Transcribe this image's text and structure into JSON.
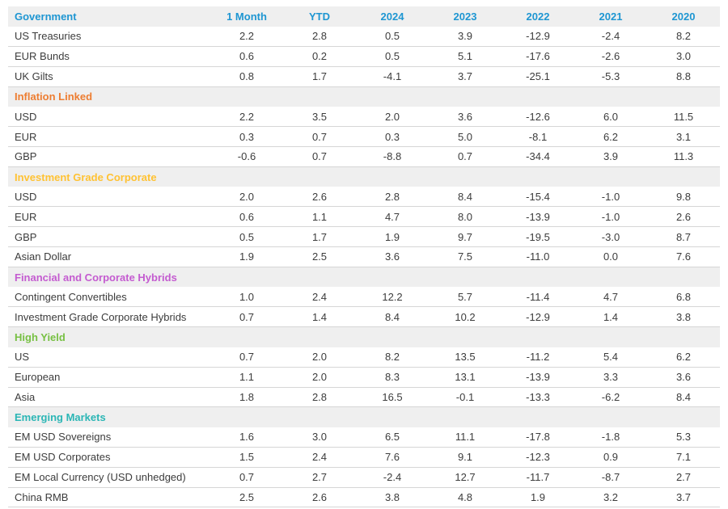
{
  "table": {
    "header_color": "#1e96d2",
    "band_background": "#efefef",
    "row_border_color": "#d6d6d6",
    "body_text_color": "#3c3c3c",
    "columns": [
      "1 Month",
      "YTD",
      "2024",
      "2023",
      "2022",
      "2021",
      "2020"
    ],
    "sections": [
      {
        "name": "Government",
        "color": "#1e96d2",
        "rows": [
          {
            "label": "US Treasuries",
            "values": [
              "2.2",
              "2.8",
              "0.5",
              "3.9",
              "-12.9",
              "-2.4",
              "8.2"
            ]
          },
          {
            "label": "EUR Bunds",
            "values": [
              "0.6",
              "0.2",
              "0.5",
              "5.1",
              "-17.6",
              "-2.6",
              "3.0"
            ]
          },
          {
            "label": "UK Gilts",
            "values": [
              "0.8",
              "1.7",
              "-4.1",
              "3.7",
              "-25.1",
              "-5.3",
              "8.8"
            ]
          }
        ]
      },
      {
        "name": "Inflation Linked",
        "color": "#ed7d31",
        "rows": [
          {
            "label": "USD",
            "values": [
              "2.2",
              "3.5",
              "2.0",
              "3.6",
              "-12.6",
              "6.0",
              "11.5"
            ]
          },
          {
            "label": "EUR",
            "values": [
              "0.3",
              "0.7",
              "0.3",
              "5.0",
              "-8.1",
              "6.2",
              "3.1"
            ]
          },
          {
            "label": "GBP",
            "values": [
              "-0.6",
              "0.7",
              "-8.8",
              "0.7",
              "-34.4",
              "3.9",
              "11.3"
            ]
          }
        ]
      },
      {
        "name": "Investment Grade Corporate",
        "color": "#ffc233",
        "rows": [
          {
            "label": "USD",
            "values": [
              "2.0",
              "2.6",
              "2.8",
              "8.4",
              "-15.4",
              "-1.0",
              "9.8"
            ]
          },
          {
            "label": "EUR",
            "values": [
              "0.6",
              "1.1",
              "4.7",
              "8.0",
              "-13.9",
              "-1.0",
              "2.6"
            ]
          },
          {
            "label": "GBP",
            "values": [
              "0.5",
              "1.7",
              "1.9",
              "9.7",
              "-19.5",
              "-3.0",
              "8.7"
            ]
          },
          {
            "label": "Asian Dollar",
            "values": [
              "1.9",
              "2.5",
              "3.6",
              "7.5",
              "-11.0",
              "0.0",
              "7.6"
            ]
          }
        ]
      },
      {
        "name": "Financial and Corporate Hybrids",
        "color": "#c45bd0",
        "rows": [
          {
            "label": "Contingent Convertibles",
            "values": [
              "1.0",
              "2.4",
              "12.2",
              "5.7",
              "-11.4",
              "4.7",
              "6.8"
            ]
          },
          {
            "label": "Investment Grade Corporate Hybrids",
            "values": [
              "0.7",
              "1.4",
              "8.4",
              "10.2",
              "-12.9",
              "1.4",
              "3.8"
            ]
          }
        ]
      },
      {
        "name": "High Yield",
        "color": "#77c043",
        "rows": [
          {
            "label": "US",
            "values": [
              "0.7",
              "2.0",
              "8.2",
              "13.5",
              "-11.2",
              "5.4",
              "6.2"
            ]
          },
          {
            "label": "European",
            "values": [
              "1.1",
              "2.0",
              "8.3",
              "13.1",
              "-13.9",
              "3.3",
              "3.6"
            ]
          },
          {
            "label": "Asia",
            "values": [
              "1.8",
              "2.8",
              "16.5",
              "-0.1",
              "-13.3",
              "-6.2",
              "8.4"
            ]
          }
        ]
      },
      {
        "name": "Emerging Markets",
        "color": "#2bb6b5",
        "rows": [
          {
            "label": "EM USD Sovereigns",
            "values": [
              "1.6",
              "3.0",
              "6.5",
              "11.1",
              "-17.8",
              "-1.8",
              "5.3"
            ]
          },
          {
            "label": "EM USD Corporates",
            "values": [
              "1.5",
              "2.4",
              "7.6",
              "9.1",
              "-12.3",
              "0.9",
              "7.1"
            ]
          },
          {
            "label": "EM Local Currency (USD unhedged)",
            "values": [
              "0.7",
              "2.7",
              "-2.4",
              "12.7",
              "-11.7",
              "-8.7",
              "2.7"
            ]
          },
          {
            "label": "China RMB",
            "values": [
              "2.5",
              "2.6",
              "3.8",
              "4.8",
              "1.9",
              "3.2",
              "3.7"
            ]
          }
        ]
      }
    ]
  }
}
